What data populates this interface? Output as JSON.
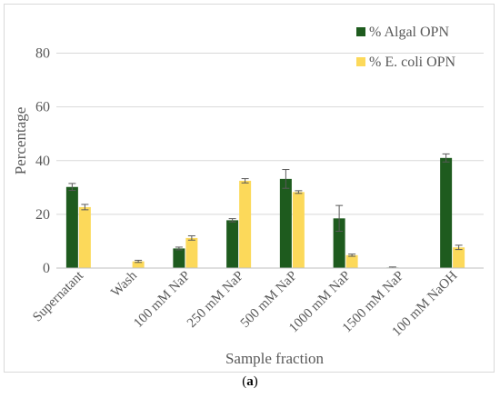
{
  "caption": {
    "open": "(",
    "letter": "a",
    "close": ")"
  },
  "chart_data": {
    "type": "bar",
    "title": "",
    "xlabel": "Sample fraction",
    "ylabel": "Percentage",
    "ylim": [
      0,
      90
    ],
    "yticks": [
      0,
      20,
      40,
      60,
      80
    ],
    "grid": true,
    "legend_position": "top-right",
    "categories": [
      "Supernatant",
      "Wash",
      "100 mM NaP",
      "250 mM NaP",
      "500 mM NaP",
      "1000 mM NaP",
      "1500 mM NaP",
      "100 mM NaOH"
    ],
    "series": [
      {
        "name": "% Algal OPN",
        "color": "#1e5b1e",
        "values": [
          30.2,
          0,
          7.3,
          17.8,
          33.2,
          18.5,
          0.2,
          41.0
        ],
        "errors": [
          1.3,
          0,
          0.5,
          0.6,
          3.5,
          4.8,
          0.2,
          1.5
        ]
      },
      {
        "name": "% E. coli OPN",
        "color": "#fcd95a",
        "values": [
          22.7,
          2.5,
          11.2,
          32.5,
          28.3,
          4.8,
          0,
          7.7
        ],
        "errors": [
          1.0,
          0.4,
          0.8,
          0.8,
          0.5,
          0.4,
          0,
          0.8
        ]
      }
    ]
  }
}
